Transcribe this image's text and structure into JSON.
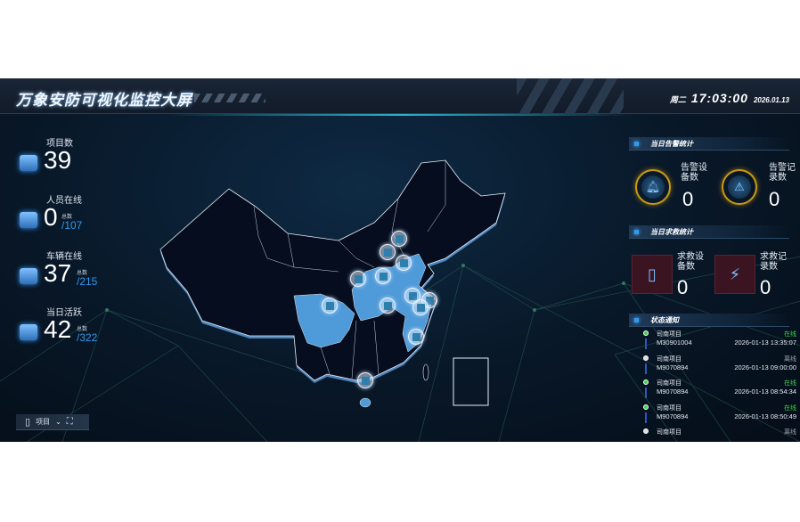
{
  "header": {
    "title": "万象安防可视化监控大屏",
    "weekday": "周二",
    "time": "17:03:00",
    "date": "2026.01.13"
  },
  "stats": [
    {
      "label": "项目数",
      "value": "39",
      "icon": "buildings-icon"
    },
    {
      "label": "人员在线",
      "value": "0",
      "total_label": "总数",
      "total": "/107",
      "icon": "person-icon"
    },
    {
      "label": "车辆在线",
      "value": "37",
      "total_label": "总数",
      "total": "/215",
      "icon": "bus-icon"
    },
    {
      "label": "当日活跃",
      "value": "42",
      "total_label": "总数",
      "total": "/322",
      "icon": "monitor-check-icon"
    }
  ],
  "toolbar": {
    "select_label": "项目"
  },
  "alarm": {
    "title": "当日告警统计",
    "devices_label": "告警设备数",
    "devices": "0",
    "records_label": "告警记录数",
    "records": "0"
  },
  "rescue": {
    "title": "当日求救统计",
    "devices_label": "求救设备数",
    "devices": "0",
    "records_label": "求救记录数",
    "records": "0"
  },
  "status": {
    "title": "状态通知",
    "colors": {
      "online": "#3ed24a",
      "offline": "#9aa4ae"
    },
    "items": [
      {
        "project": "司南项目",
        "status": "在线",
        "online": true,
        "code": "M30901004",
        "time": "2026-01-13 13:35:07"
      },
      {
        "project": "司南项目",
        "status": "离线",
        "online": false,
        "code": "M9070894",
        "time": "2026-01-13 09:00:00"
      },
      {
        "project": "司南项目",
        "status": "在线",
        "online": true,
        "code": "M9070894",
        "time": "2026-01-13 08:54:34"
      },
      {
        "project": "司南项目",
        "status": "在线",
        "online": true,
        "code": "M9070894",
        "time": "2026-01-13 08:50:49"
      },
      {
        "project": "司南项目",
        "status": "离线",
        "online": false
      }
    ]
  },
  "map": {
    "highlight_color": "#4f9ad8",
    "marker_count": 12
  }
}
